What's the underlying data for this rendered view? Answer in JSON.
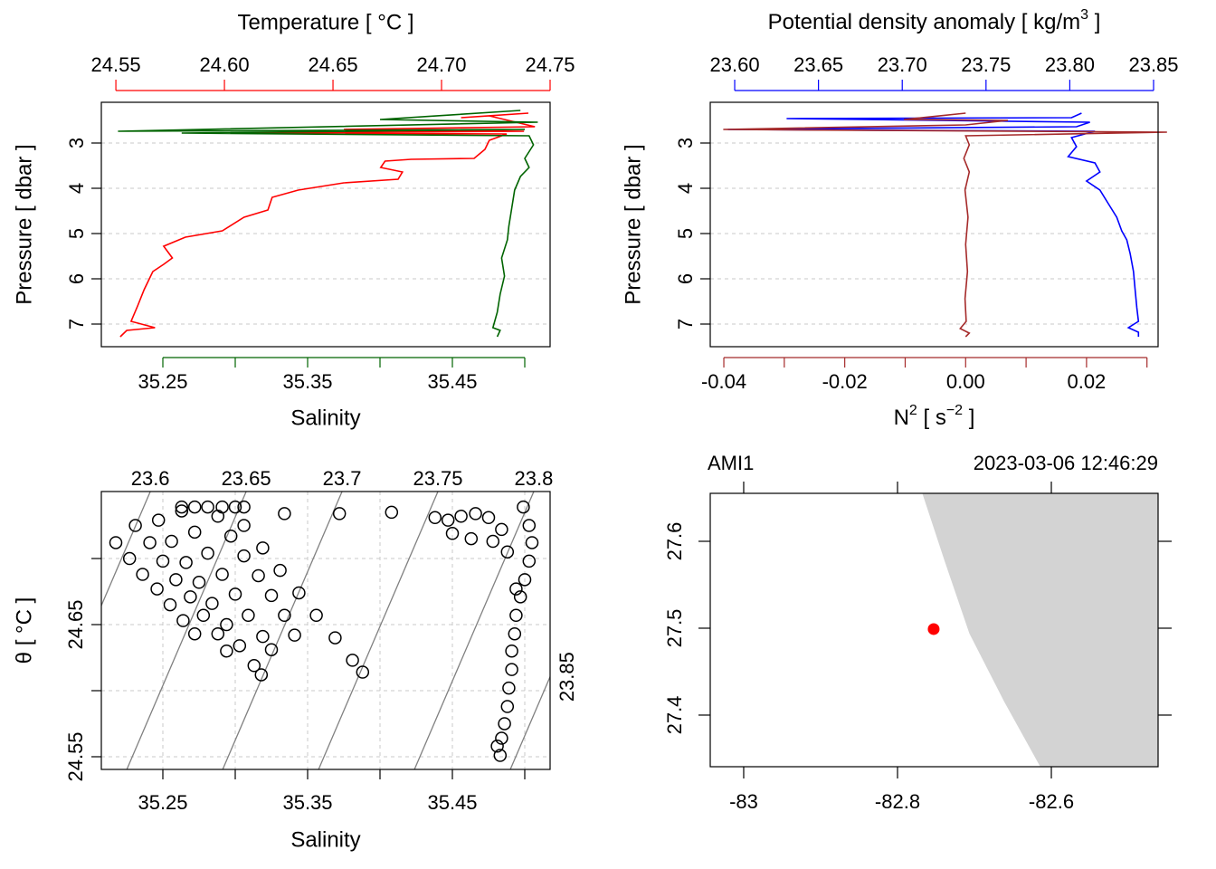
{
  "chart_data": [
    {
      "type": "profile",
      "x2label": "Temperature [ °C ]",
      "xlabel": "Salinity",
      "ylabel": "Pressure [ dbar ]",
      "x2lim": [
        24.5433,
        24.75
      ],
      "x2ticks": [
        24.55,
        {
          "value": 24.6,
          "label": "24.60"
        },
        24.65,
        {
          "value": 24.7,
          "label": "24.70"
        },
        24.75
      ],
      "xlim": [
        35.2075,
        35.5175
      ],
      "xticks": [
        35.25,
        35.35,
        35.45
      ],
      "xminorticks": [
        35.3,
        35.4,
        35.5
      ],
      "ylim": [
        2.1,
        7.5
      ],
      "yticks": [
        3,
        4,
        5,
        6,
        7
      ],
      "grid": true,
      "series": [
        {
          "color": "#ff0000",
          "axis": "x2",
          "x": [
            24.74,
            24.709,
            24.722,
            24.743,
            24.655,
            24.738,
            24.609,
            24.73,
            24.722,
            24.72,
            24.715,
            24.686,
            24.674,
            24.672,
            24.682,
            24.68,
            24.655,
            24.634,
            24.622,
            24.62,
            24.609,
            24.599,
            24.582,
            24.572,
            24.576,
            24.572,
            24.567,
            24.563,
            24.56,
            24.557,
            24.568,
            24.555,
            24.552
          ],
          "values": [
            2.34,
            2.44,
            2.4,
            2.64,
            2.7,
            2.74,
            2.78,
            2.8,
            2.94,
            3.14,
            3.34,
            3.36,
            3.4,
            3.54,
            3.64,
            3.8,
            3.88,
            4.04,
            4.2,
            4.48,
            4.64,
            4.94,
            5.08,
            5.28,
            5.54,
            5.68,
            5.84,
            6.24,
            6.6,
            6.94,
            7.08,
            7.14,
            7.28
          ]
        },
        {
          "color": "#006400",
          "x": [
            35.497,
            35.4,
            35.509,
            35.219,
            35.5,
            35.263,
            35.503,
            35.506,
            35.5,
            35.503,
            35.497,
            35.493,
            35.491,
            35.489,
            35.488,
            35.484,
            35.486,
            35.483,
            35.481,
            35.478,
            35.483,
            35.481
          ],
          "values": [
            2.28,
            2.48,
            2.54,
            2.74,
            2.7,
            2.78,
            2.84,
            3.04,
            3.34,
            3.54,
            3.74,
            4.04,
            4.44,
            4.84,
            5.14,
            5.54,
            5.94,
            6.34,
            6.74,
            7.08,
            7.14,
            7.28
          ]
        }
      ]
    },
    {
      "type": "profile",
      "x2label": [
        "Potential density anomaly [ kg/m",
        "3",
        " ]"
      ],
      "xlabel": [
        "N",
        "2",
        " [ s",
        "−2",
        " ]"
      ],
      "ylabel": "Pressure [ dbar ]",
      "x2lim": [
        23.5854,
        23.8527
      ],
      "x2ticks": [
        {
          "value": 23.6,
          "label": "23.60"
        },
        23.65,
        {
          "value": 23.7,
          "label": "23.70"
        },
        23.75,
        {
          "value": 23.8,
          "label": "23.80"
        },
        23.85
      ],
      "xlim": [
        -0.04225,
        0.03184
      ],
      "xticks": [
        -0.04,
        -0.02,
        {
          "value": 0,
          "label": "0.00"
        },
        0.02
      ],
      "xminorticks": [
        -0.03,
        -0.01,
        0.01,
        0.03
      ],
      "ylim": [
        2.1,
        7.5
      ],
      "yticks": [
        3,
        4,
        5,
        6,
        7
      ],
      "grid": true,
      "series": [
        {
          "color": "#0000ff",
          "axis": "x2",
          "x": [
            23.807,
            23.801,
            23.631,
            23.812,
            23.804,
            23.596,
            23.815,
            23.801,
            23.804,
            23.799,
            23.815,
            23.818,
            23.81,
            23.818,
            23.823,
            23.828,
            23.831,
            23.834,
            23.836,
            23.838,
            23.839,
            23.84,
            23.841,
            23.835,
            23.841,
            23.841
          ],
          "values": [
            2.34,
            2.44,
            2.46,
            2.54,
            2.64,
            2.7,
            2.74,
            2.88,
            3.08,
            3.3,
            3.44,
            3.64,
            3.84,
            4.04,
            4.34,
            4.64,
            4.94,
            5.14,
            5.44,
            5.84,
            6.24,
            6.64,
            6.94,
            7.08,
            7.18,
            7.28
          ]
        },
        {
          "color": "#a52a2a",
          "x": [
            0,
            -0.0102,
            0.007,
            0,
            -0.0401,
            0.0333,
            0,
            0.0006,
            -0.0003,
            0.0006,
            -0.0001,
            0.0004,
            0,
            0.0003,
            -0.0001,
            0.0001,
            -0.0009,
            0.0006,
            0
          ],
          "values": [
            2.34,
            2.48,
            2.5,
            2.6,
            2.7,
            2.76,
            2.84,
            3.04,
            3.34,
            3.64,
            4.04,
            4.64,
            5.24,
            5.84,
            6.44,
            6.94,
            7.1,
            7.2,
            7.28
          ]
        }
      ]
    },
    {
      "type": "ts",
      "xlabel": "Salinity",
      "ylabel": "θ [ °C ]",
      "xlim": [
        35.2075,
        35.5175
      ],
      "xticks": [
        35.25,
        35.35,
        35.45
      ],
      "xminorticks": [
        35.3,
        35.4,
        35.5
      ],
      "ylim": [
        24.5404,
        24.7507
      ],
      "yticks": [
        24.55,
        24.65
      ],
      "yminorticks": [
        24.6,
        24.7
      ],
      "grid": true,
      "isopycnals": [
        23.6,
        23.65,
        23.7,
        23.75,
        23.8,
        23.85
      ],
      "isopycnal_color": "#808080",
      "color": "#000000",
      "x": [
        35.2175,
        35.227,
        35.236,
        35.246,
        35.255,
        35.264,
        35.272,
        35.231,
        35.241,
        35.25,
        35.259,
        35.269,
        35.278,
        35.288,
        35.294,
        35.247,
        35.256,
        35.266,
        35.275,
        35.284,
        35.294,
        35.303,
        35.313,
        35.318,
        35.263,
        35.272,
        35.281,
        35.291,
        35.3,
        35.309,
        35.319,
        35.325,
        35.288,
        35.297,
        35.306,
        35.316,
        35.325,
        35.334,
        35.341,
        35.306,
        35.319,
        35.331,
        35.344,
        35.356,
        35.369,
        35.381,
        35.388,
        35.263,
        35.272,
        35.281,
        35.291,
        35.3,
        35.306,
        35.334,
        35.372,
        35.408,
        35.438,
        35.447,
        35.456,
        35.466,
        35.475,
        35.484,
        35.45,
        35.463,
        35.478,
        35.499,
        35.503,
        35.505,
        35.503,
        35.5,
        35.497,
        35.494,
        35.493,
        35.491,
        35.491,
        35.489,
        35.488,
        35.486,
        35.484,
        35.481,
        35.483,
        35.494,
        35.488
      ],
      "values": [
        24.712,
        24.7,
        24.688,
        24.677,
        24.665,
        24.653,
        24.643,
        24.725,
        24.712,
        24.698,
        24.684,
        24.671,
        24.657,
        24.643,
        24.63,
        24.729,
        24.713,
        24.697,
        24.682,
        24.666,
        24.65,
        24.634,
        24.619,
        24.612,
        24.736,
        24.72,
        24.704,
        24.688,
        24.673,
        24.657,
        24.641,
        24.631,
        24.732,
        24.717,
        24.702,
        24.687,
        24.672,
        24.657,
        24.642,
        24.725,
        24.708,
        24.691,
        24.674,
        24.657,
        24.64,
        24.623,
        24.614,
        24.739,
        24.739,
        24.739,
        24.739,
        24.739,
        24.739,
        24.734,
        24.734,
        24.735,
        24.731,
        24.729,
        24.732,
        24.734,
        24.731,
        24.722,
        24.719,
        24.715,
        24.713,
        24.739,
        24.725,
        24.712,
        24.698,
        24.684,
        24.671,
        24.657,
        24.643,
        24.63,
        24.616,
        24.602,
        24.588,
        24.575,
        24.564,
        24.558,
        24.551,
        24.677,
        24.705
      ]
    },
    {
      "type": "map",
      "station": "AMI1",
      "time": "2023-03-06 12:46:29",
      "xlim": [
        -83.0435,
        -82.4612
      ],
      "xticks": [
        -83,
        -82.8,
        -82.6
      ],
      "ylim": [
        27.3406,
        27.6552
      ],
      "yticks": [
        27.4,
        27.5,
        27.6
      ],
      "land_color": "#d3d3d3",
      "coastline": {
        "lon": [
          -82.767,
          -82.738,
          -82.706,
          -82.661,
          -82.614
        ],
        "lat": [
          27.655,
          27.577,
          27.494,
          27.416,
          27.341
        ]
      },
      "point": {
        "lon": -82.753,
        "lat": 27.499,
        "color": "#ff0000"
      }
    }
  ]
}
